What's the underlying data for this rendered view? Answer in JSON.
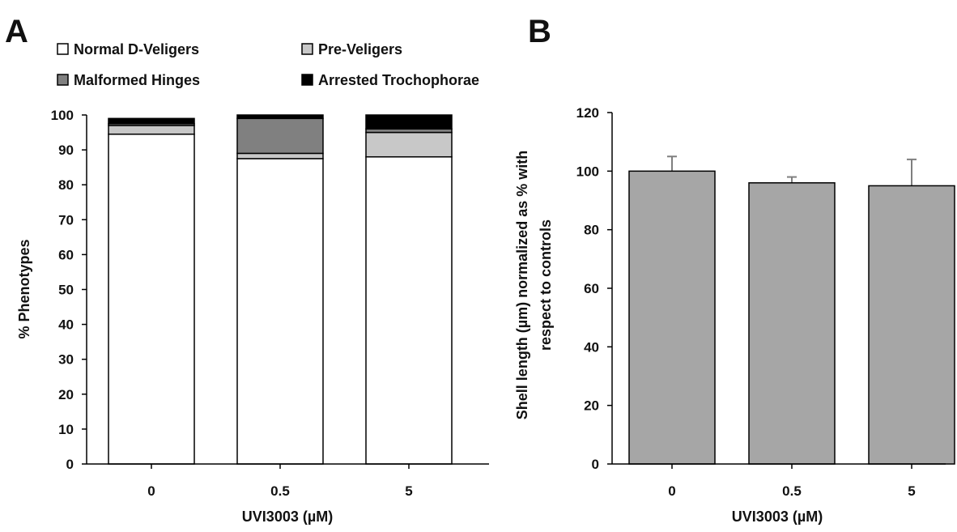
{
  "panels": {
    "a": {
      "letter": "A"
    },
    "b": {
      "letter": "B"
    }
  },
  "chart_data": [
    {
      "type": "bar",
      "stacked": true,
      "categories": [
        "0",
        "0.5",
        "5"
      ],
      "xlabel": "UVI3003 (µM)",
      "ylabel": "% Phenotypes",
      "ylim": [
        0,
        100
      ],
      "yticks": [
        "0",
        "10",
        "20",
        "30",
        "40",
        "50",
        "60",
        "70",
        "80",
        "90",
        "100"
      ],
      "grid": false,
      "legend_position": "top",
      "series": [
        {
          "name": "Normal D-Veligers",
          "values": [
            94.5,
            87.5,
            88
          ],
          "color": "#ffffff"
        },
        {
          "name": "Pre-Veligers",
          "values": [
            2.5,
            1.5,
            7
          ],
          "color": "#c8c8c8"
        },
        {
          "name": "Malformed Hinges",
          "values": [
            0.5,
            10,
            1
          ],
          "color": "#808080"
        },
        {
          "name": "Arrested Trochophorae",
          "values": [
            1.5,
            1,
            4
          ],
          "color": "#000000"
        }
      ]
    },
    {
      "type": "bar",
      "categories": [
        "0",
        "0.5",
        "5"
      ],
      "xlabel": "UVI3003 (µM)",
      "ylabel_line1": "Shell length (µm) normalized as % with",
      "ylabel_line2": "respect to controls",
      "ylim": [
        0,
        120
      ],
      "yticks": [
        "0",
        "20",
        "40",
        "60",
        "80",
        "100",
        "120"
      ],
      "grid": false,
      "bar_color": "#a6a6a6",
      "values": [
        100,
        96,
        95
      ],
      "error": [
        5,
        2,
        9
      ]
    }
  ]
}
